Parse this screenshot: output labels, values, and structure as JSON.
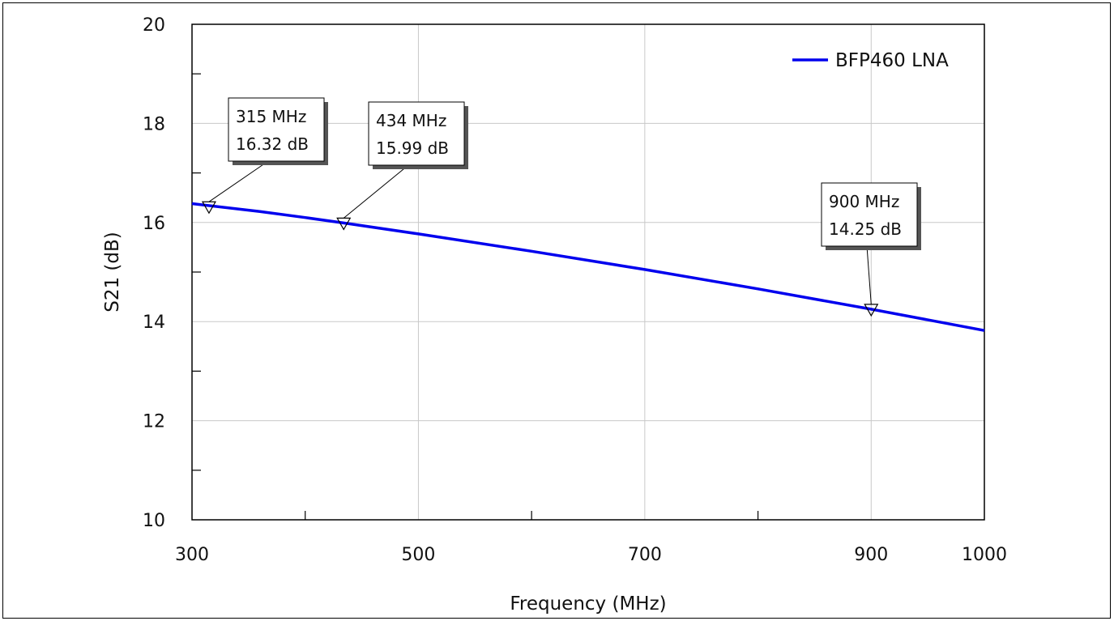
{
  "chart_data": {
    "type": "line",
    "xlabel": "Frequency (MHz)",
    "ylabel": "S21 (dB)",
    "xlim": [
      300,
      1000
    ],
    "ylim": [
      10,
      20
    ],
    "x_ticks": [
      300,
      500,
      700,
      900,
      1000
    ],
    "x_tick_labels": [
      "300",
      "500",
      "700",
      "900",
      "1000"
    ],
    "x_minor_ticks": [
      400,
      600,
      800
    ],
    "y_ticks": [
      10,
      12,
      14,
      16,
      18,
      20
    ],
    "y_tick_labels": [
      "10",
      "12",
      "14",
      "16",
      "18",
      "20"
    ],
    "y_minor_ticks": [
      11,
      13,
      15,
      17,
      19
    ],
    "x_gridlines": [
      500,
      700,
      900
    ],
    "y_gridlines": [
      12,
      14,
      16,
      18
    ],
    "grid": true,
    "legend_position": "top-right",
    "series": [
      {
        "name": "BFP460 LNA",
        "color": "#0000ee",
        "x": [
          300,
          360,
          400,
          434,
          500,
          600,
          700,
          800,
          900,
          1000
        ],
        "y": [
          16.38,
          16.22,
          16.1,
          15.99,
          15.77,
          15.42,
          15.05,
          14.66,
          14.25,
          13.82
        ]
      }
    ],
    "markers": [
      {
        "x": 315,
        "y": 16.32,
        "line1": "315 MHz",
        "line2": "16.32 dB"
      },
      {
        "x": 434,
        "y": 15.99,
        "line1": "434 MHz",
        "line2": "15.99 dB"
      },
      {
        "x": 900,
        "y": 14.25,
        "line1": "900 MHz",
        "line2": "14.25 dB"
      }
    ]
  }
}
